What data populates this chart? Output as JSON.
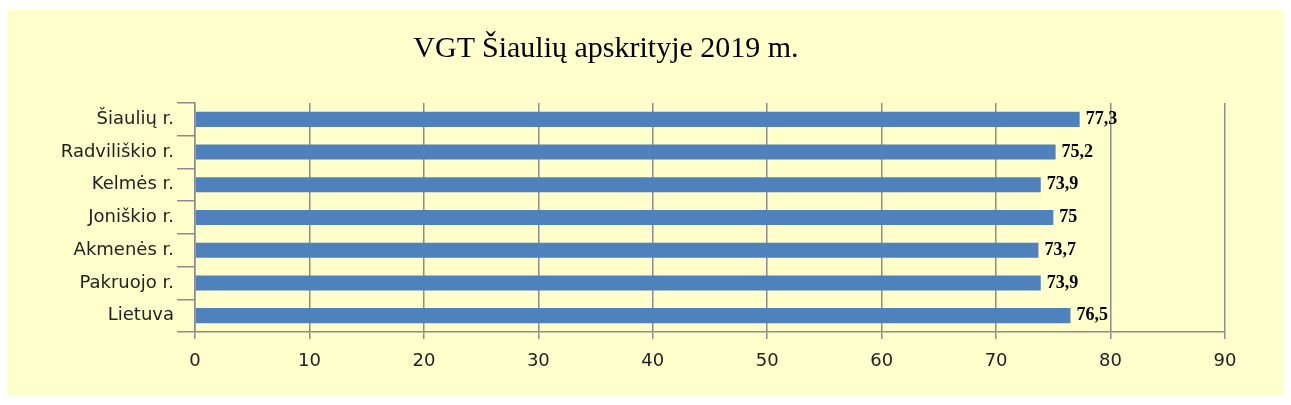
{
  "chart_data": {
    "type": "bar",
    "orientation": "horizontal",
    "title": "VGT Šiaulių apskrityje 2019 m.",
    "categories": [
      "Šiaulių r.",
      "Radviliškio r.",
      "Kelmės r.",
      "Joniškio r.",
      "Akmenės r.",
      "Pakruojo r.",
      "Lietuva"
    ],
    "values": [
      77.3,
      75.2,
      73.9,
      75,
      73.7,
      73.9,
      76.5
    ],
    "color": "#4f81bd",
    "value_labels": [
      "77,3",
      "75,2",
      "73,9",
      "75",
      "73,7",
      "73,9",
      "76,5"
    ],
    "xlim": [
      0,
      90
    ],
    "xticks": [
      0,
      10,
      20,
      30,
      40,
      50,
      60,
      70,
      80,
      90
    ],
    "grid": "x"
  }
}
